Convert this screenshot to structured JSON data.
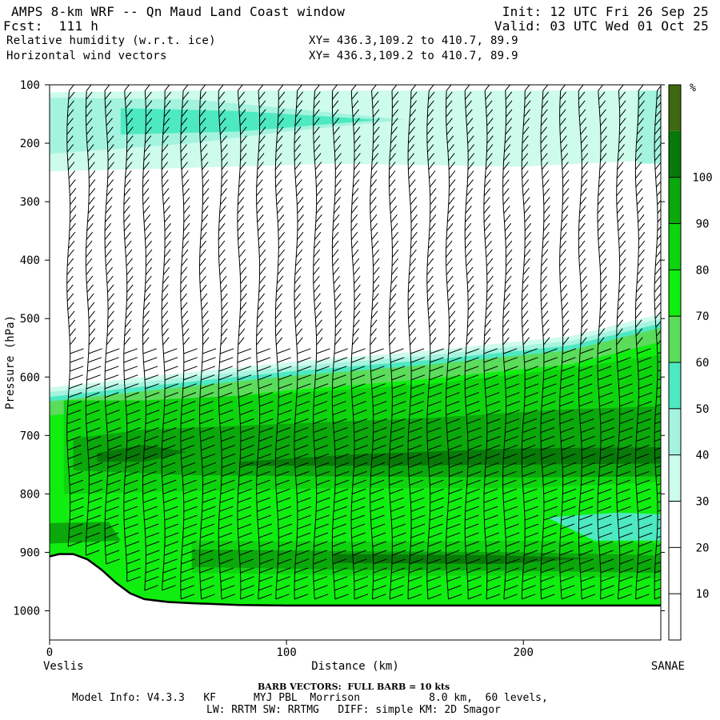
{
  "header": {
    "title": "AMPS 8-km WRF -- Qn Maud Land Coast window",
    "fcst": "Fcst:  111 h",
    "field1": "Relative humidity (w.r.t. ice)",
    "field2": "Horizontal wind vectors",
    "init": "Init: 12 UTC Fri 26 Sep 25",
    "valid": "Valid: 03 UTC Wed 01 Oct 25",
    "xy1": "XY= 436.3,109.2 to 410.7, 89.9",
    "xy2": "XY= 436.3,109.2 to 410.7, 89.9"
  },
  "footer": {
    "barb_note": "BARB VECTORS:  FULL BARB = 10 kts",
    "model_line1": "Model Info: V4.3.3   KF      MYJ PBL  Morrison           8.0 km,  60 levels,",
    "model_line2": "LW: RRTM SW: RRTMG   DIFF: simple KM: 2D Smagor"
  },
  "colors": {
    "c0": "#ffffff",
    "c20": "#ffffff",
    "c30": "#cdfbec",
    "c40": "#a4f3df",
    "c50": "#4de9c1",
    "c60": "#5bdc5b",
    "c70": "#10ee10",
    "c80": "#0ed40e",
    "c90": "#0aa80a",
    "c100": "#077a07",
    "ctop": "#3d6a10"
  },
  "chart_data": {
    "type": "cross-section",
    "title": "Relative humidity (w.r.t. ice) and horizontal wind vectors",
    "xlabel": "Distance (km)",
    "ylabel": "Pressure (hPa)",
    "xlim": [
      0,
      258
    ],
    "ylim": [
      1050,
      100
    ],
    "x_ticks": [
      0,
      100,
      200
    ],
    "y_ticks": [
      100,
      200,
      300,
      400,
      500,
      600,
      700,
      800,
      900,
      1000
    ],
    "left_endpoint": "Veslis",
    "right_endpoint": "SANAE",
    "colorbar": {
      "unit": "%",
      "levels": [
        10,
        20,
        30,
        40,
        50,
        60,
        70,
        80,
        90,
        100
      ]
    },
    "terrain": [
      [
        0,
        907
      ],
      [
        4,
        903
      ],
      [
        10,
        903
      ],
      [
        16,
        912
      ],
      [
        22,
        930
      ],
      [
        28,
        952
      ],
      [
        34,
        970
      ],
      [
        40,
        980
      ],
      [
        50,
        985
      ],
      [
        60,
        987
      ],
      [
        80,
        990
      ],
      [
        100,
        991
      ],
      [
        150,
        991
      ],
      [
        200,
        991
      ],
      [
        258,
        991
      ]
    ],
    "cloud_layer_top_hPa": [
      [
        0,
        620
      ],
      [
        50,
        585
      ],
      [
        100,
        565
      ],
      [
        150,
        545
      ],
      [
        200,
        525
      ],
      [
        258,
        495
      ]
    ],
    "upper_moist_layer_hPa": [
      [
        0,
        125
      ],
      [
        80,
        130
      ],
      [
        150,
        150
      ],
      [
        258,
        165
      ]
    ],
    "barb_x_km": [
      8,
      16,
      24,
      32,
      40,
      48,
      56,
      64,
      72,
      80,
      88,
      96,
      104,
      112,
      120,
      128,
      136,
      144,
      152,
      160,
      168,
      176,
      184,
      192,
      200,
      208,
      216,
      224,
      232,
      240,
      248,
      256
    ],
    "barb_note": "full barb = 10 kts"
  }
}
